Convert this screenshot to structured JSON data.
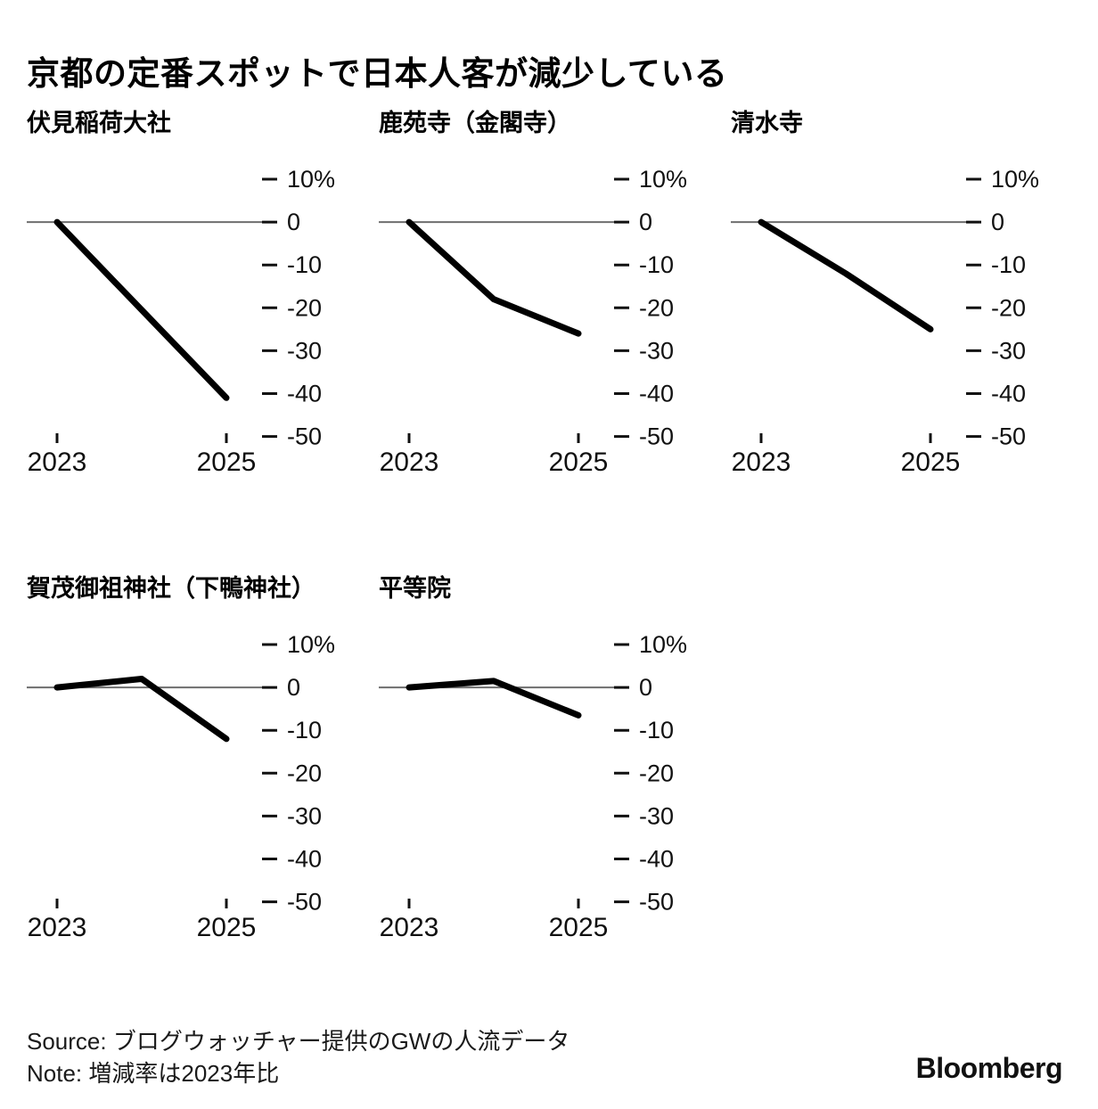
{
  "header": {
    "title": "京都の定番スポットで日本人客が減少している"
  },
  "style": {
    "line_color": "#000000",
    "zero_line_color": "#6e6e6e",
    "text_color": "#111111",
    "background": "#ffffff"
  },
  "axes": {
    "unit": "%",
    "ylim": [
      -50,
      10
    ],
    "y_ticks": [
      10,
      0,
      -10,
      -20,
      -30,
      -40,
      -50
    ],
    "y_tick_labels": [
      "10%",
      "0",
      "-10",
      "-20",
      "-30",
      "-40",
      "-50"
    ],
    "x_ticks": [
      2023,
      2025
    ],
    "x_tick_labels": [
      "2023",
      "2025"
    ],
    "grid": "zero-baseline-only",
    "tick_side": "right"
  },
  "chart_data": [
    {
      "type": "line",
      "title": "伏見稲荷大社",
      "x": [
        2023,
        2024,
        2025
      ],
      "values": [
        0,
        -20.5,
        -41
      ],
      "xlabel": "",
      "ylabel": ""
    },
    {
      "type": "line",
      "title": "鹿苑寺（金閣寺）",
      "x": [
        2023,
        2024,
        2025
      ],
      "values": [
        0,
        -18,
        -26
      ],
      "xlabel": "",
      "ylabel": ""
    },
    {
      "type": "line",
      "title": "清水寺",
      "x": [
        2023,
        2024,
        2025
      ],
      "values": [
        0,
        -12,
        -25
      ],
      "xlabel": "",
      "ylabel": ""
    },
    {
      "type": "line",
      "title": "賀茂御祖神社（下鴨神社）",
      "x": [
        2023,
        2024,
        2025
      ],
      "values": [
        0,
        2,
        -12
      ],
      "xlabel": "",
      "ylabel": ""
    },
    {
      "type": "line",
      "title": "平等院",
      "x": [
        2023,
        2024,
        2025
      ],
      "values": [
        0,
        1.5,
        -6.5
      ],
      "xlabel": "",
      "ylabel": ""
    }
  ],
  "footer": {
    "source": "Source: ブログウォッチャー提供のGWの人流データ",
    "note": "Note: 増減率は2023年比",
    "brand": "Bloomberg"
  }
}
